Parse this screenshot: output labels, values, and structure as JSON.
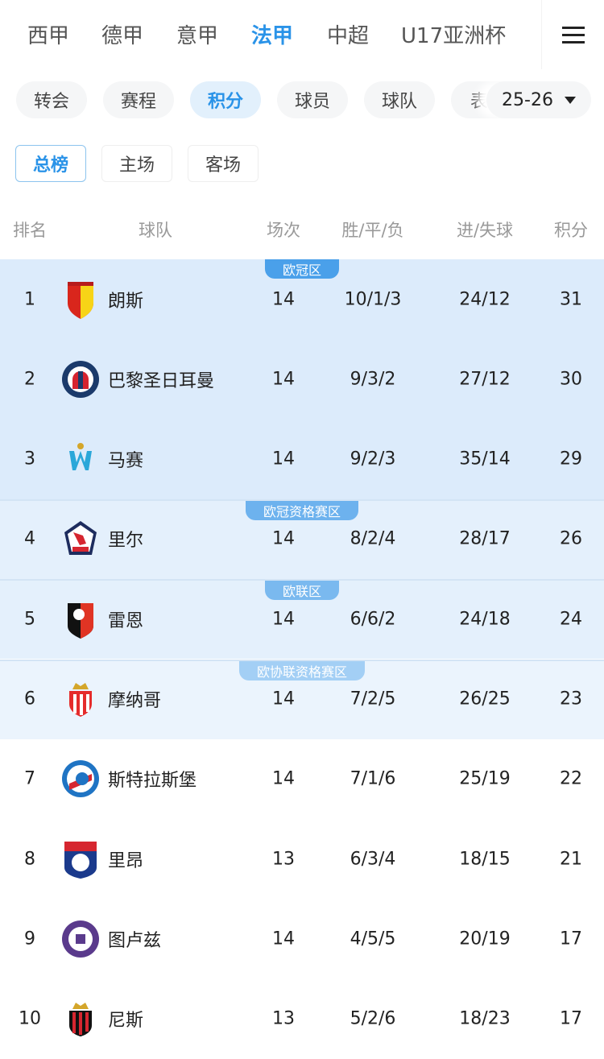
{
  "leagues": [
    "西甲",
    "德甲",
    "意甲",
    "法甲",
    "中超",
    "U17亚洲杯"
  ],
  "active_league": "法甲",
  "chips": [
    "转会",
    "赛程",
    "积分",
    "球员",
    "球队",
    "表"
  ],
  "active_chip": "积分",
  "season": "25-26",
  "segments": [
    "总榜",
    "主场",
    "客场"
  ],
  "headers": {
    "rank": "排名",
    "team": "球队",
    "played": "场次",
    "wdl": "胜/平/负",
    "goals": "进/失球",
    "points": "积分"
  },
  "zones": [
    {
      "label": "欧冠区",
      "color": "#4aa0ea",
      "bg": "#dcebfb"
    },
    {
      "label": "欧冠资格赛区",
      "color": "#6db2ee",
      "bg": "#e4f0fc"
    },
    {
      "label": "欧联区",
      "color": "#7ab9ef",
      "bg": "#e4f0fc"
    },
    {
      "label": "欧协联资格赛区",
      "color": "#a3cff5",
      "bg": "#ebf4fd"
    }
  ],
  "rows": [
    {
      "rank": "1",
      "team": "朗斯",
      "played": "14",
      "wdl": "10/1/3",
      "goals": "24/12",
      "points": "31",
      "crest": "lens-crest"
    },
    {
      "rank": "2",
      "team": "巴黎圣日耳曼",
      "played": "14",
      "wdl": "9/3/2",
      "goals": "27/12",
      "points": "30",
      "crest": "psg-crest"
    },
    {
      "rank": "3",
      "team": "马赛",
      "played": "14",
      "wdl": "9/2/3",
      "goals": "35/14",
      "points": "29",
      "crest": "marseille-crest"
    },
    {
      "rank": "4",
      "team": "里尔",
      "played": "14",
      "wdl": "8/2/4",
      "goals": "28/17",
      "points": "26",
      "crest": "lille-crest"
    },
    {
      "rank": "5",
      "team": "雷恩",
      "played": "14",
      "wdl": "6/6/2",
      "goals": "24/18",
      "points": "24",
      "crest": "rennes-crest"
    },
    {
      "rank": "6",
      "team": "摩纳哥",
      "played": "14",
      "wdl": "7/2/5",
      "goals": "26/25",
      "points": "23",
      "crest": "monaco-crest"
    },
    {
      "rank": "7",
      "team": "斯特拉斯堡",
      "played": "14",
      "wdl": "7/1/6",
      "goals": "25/19",
      "points": "22",
      "crest": "strasbourg-crest"
    },
    {
      "rank": "8",
      "team": "里昂",
      "played": "13",
      "wdl": "6/3/4",
      "goals": "18/15",
      "points": "21",
      "crest": "lyon-crest"
    },
    {
      "rank": "9",
      "team": "图卢兹",
      "played": "14",
      "wdl": "4/5/5",
      "goals": "20/19",
      "points": "17",
      "crest": "toulouse-crest"
    },
    {
      "rank": "10",
      "team": "尼斯",
      "played": "13",
      "wdl": "5/2/6",
      "goals": "18/23",
      "points": "17",
      "crest": "nice-crest"
    }
  ]
}
